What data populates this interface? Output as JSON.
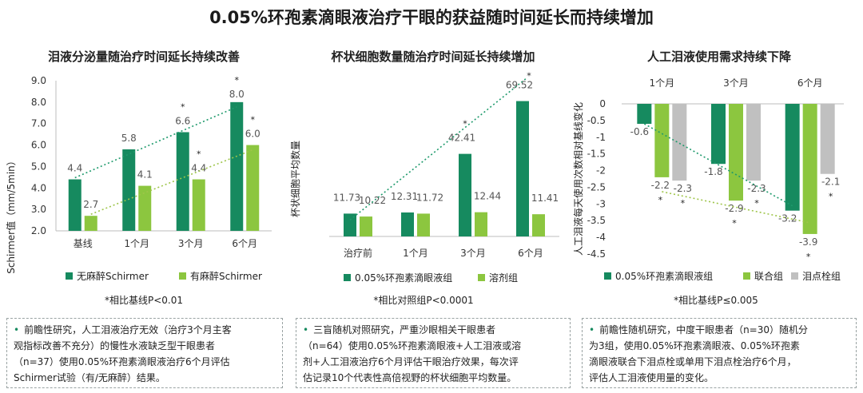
{
  "page": {
    "title": "0.05%环孢素滴眼液治疗干眼的获益随时间延长而持续增加"
  },
  "colors": {
    "dark_green": "#168a5f",
    "light_green": "#8cc63f",
    "gray": "#c0c0c0",
    "trend_dark": "#1e9a6c",
    "trend_light": "#9ec54a"
  },
  "chart_data": [
    {
      "type": "bar",
      "title": "泪液分泌量随治疗时间延长持续改善",
      "ylabel": "Schirmer值（mm/5min）",
      "ylim": [
        2.0,
        9.0
      ],
      "yticks": [
        "2.0",
        "3.0",
        "4.0",
        "5.0",
        "6.0",
        "7.0",
        "8.0",
        "9.0"
      ],
      "categories": [
        "基线",
        "1个月",
        "3个月",
        "6个月"
      ],
      "series": [
        {
          "name": "无麻醉Schirmer",
          "values": [
            4.4,
            5.8,
            6.6,
            8.0
          ],
          "labels": [
            "4.4",
            "5.8",
            "6.6",
            "8.0"
          ]
        },
        {
          "name": "有麻醉Schirmer",
          "values": [
            2.7,
            4.1,
            4.4,
            6.0
          ],
          "labels": [
            "2.7",
            "4.1",
            "4.4",
            "6.0"
          ]
        }
      ],
      "asterisks": [
        "*",
        "*",
        "*",
        "*"
      ],
      "footnote": "*相比基线P<0.01"
    },
    {
      "type": "bar",
      "title": "杯状细胞数量随治疗时间延长持续增加",
      "ylabel": "杯状细胞平均数量",
      "ylim": [
        0,
        80
      ],
      "categories": [
        "治疗前",
        "1个月",
        "3个月",
        "6个月"
      ],
      "series": [
        {
          "name": "0.05%环孢素滴眼液组",
          "values": [
            11.73,
            12.31,
            42.41,
            69.52
          ],
          "labels": [
            "11.73",
            "12.31",
            "42.41",
            "69.52"
          ]
        },
        {
          "name": "溶剂组",
          "values": [
            10.22,
            11.72,
            12.44,
            11.41
          ],
          "labels": [
            "10.22",
            "11.72",
            "12.44",
            "11.41"
          ]
        }
      ],
      "asterisks": [
        "*",
        "*"
      ],
      "footnote": "*相比对照组P<0.0001"
    },
    {
      "type": "bar",
      "title": "人工泪液使用需求持续下降",
      "ylabel": "人工泪液每天使用次数相对基线变化",
      "ylim": [
        -4.5,
        0
      ],
      "yticks": [
        "0",
        "-0.5",
        "-1",
        "-1.5",
        "-2",
        "-2.5",
        "-3",
        "-3.5",
        "-4",
        "-4.5"
      ],
      "categories": [
        "1个月",
        "3个月",
        "6个月"
      ],
      "series": [
        {
          "name": "0.05%环孢素滴眼液组",
          "values": [
            -0.6,
            -1.8,
            -3.2
          ],
          "labels": [
            "-0.6",
            "-1.8",
            "-3.2"
          ]
        },
        {
          "name": "联合组",
          "values": [
            -2.2,
            -2.9,
            -3.9
          ],
          "labels": [
            "-2.2",
            "-2.9",
            "-3.9"
          ]
        },
        {
          "name": "泪点栓组",
          "values": [
            -2.3,
            -2.3,
            -2.1
          ],
          "labels": [
            "-2.3",
            "-2.3",
            "-2.1"
          ]
        }
      ],
      "asterisks": [
        "*",
        "*",
        "*",
        "*",
        "*",
        "*"
      ],
      "footnote": "*相比基线P≤0.005"
    }
  ],
  "notes": [
    {
      "bullet": "•",
      "lines": [
        "前瞻性研究，人工泪液治疗无效（治疗3个月主客",
        "观指标改善不充分）的慢性水液缺乏型干眼患者",
        "（n=37）使用0.05%环孢素滴眼液治疗6个月评估",
        "Schirmer试验（有/无麻醉）结果。"
      ]
    },
    {
      "bullet": "•",
      "lines": [
        "三盲随机对照研究，严重沙眼相关干眼患者",
        "（n=64）使用0.05%环孢素滴眼液+人工泪液或溶",
        "剂+人工泪液治疗6个月评估干眼治疗效果，每次评",
        "估记录10个代表性高倍视野的杯状细胞平均数量。"
      ]
    },
    {
      "bullet": "•",
      "lines": [
        "前瞻性随机研究，中度干眼患者（n=30）随机分",
        "为3组，使用0.05%环孢素滴眼液、0.05%环孢素",
        "滴眼液联合下泪点栓或单用下泪点栓治疗6个月，",
        "评估人工泪液使用量的变化。"
      ]
    }
  ]
}
